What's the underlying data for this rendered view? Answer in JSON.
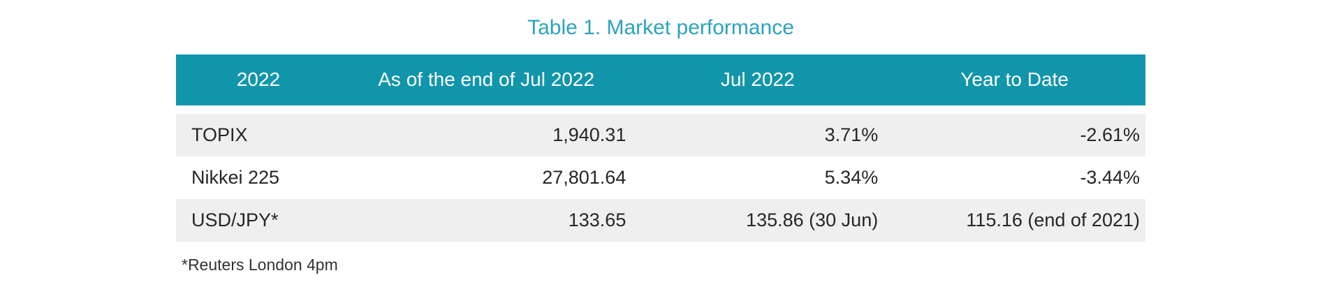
{
  "title": "Table 1. Market performance",
  "footnote": "*Reuters London 4pm",
  "colors": {
    "header_bg": "#1195AB",
    "title_text": "#2CA2BE",
    "row_alt_bg": "#EFEFEF",
    "header_text": "#FFFFFF",
    "cell_text": "#262626"
  },
  "chart_data": {
    "type": "table",
    "title": "Table 1. Market performance",
    "columns": [
      "2022",
      "As of the end of Jul 2022",
      "Jul 2022",
      "Year to Date"
    ],
    "rows": [
      [
        "TOPIX",
        "1,940.31",
        "3.71%",
        "-2.61%"
      ],
      [
        "Nikkei 225",
        "27,801.64",
        "5.34%",
        "-3.44%"
      ],
      [
        "USD/JPY*",
        "133.65",
        "135.86 (30 Jun)",
        "115.16 (end of 2021)"
      ]
    ],
    "footnote": "*Reuters London 4pm",
    "layout": {
      "header_align": "center",
      "label_align": "left",
      "value_align": "right",
      "alt_row_shading": [
        1,
        3
      ]
    }
  }
}
